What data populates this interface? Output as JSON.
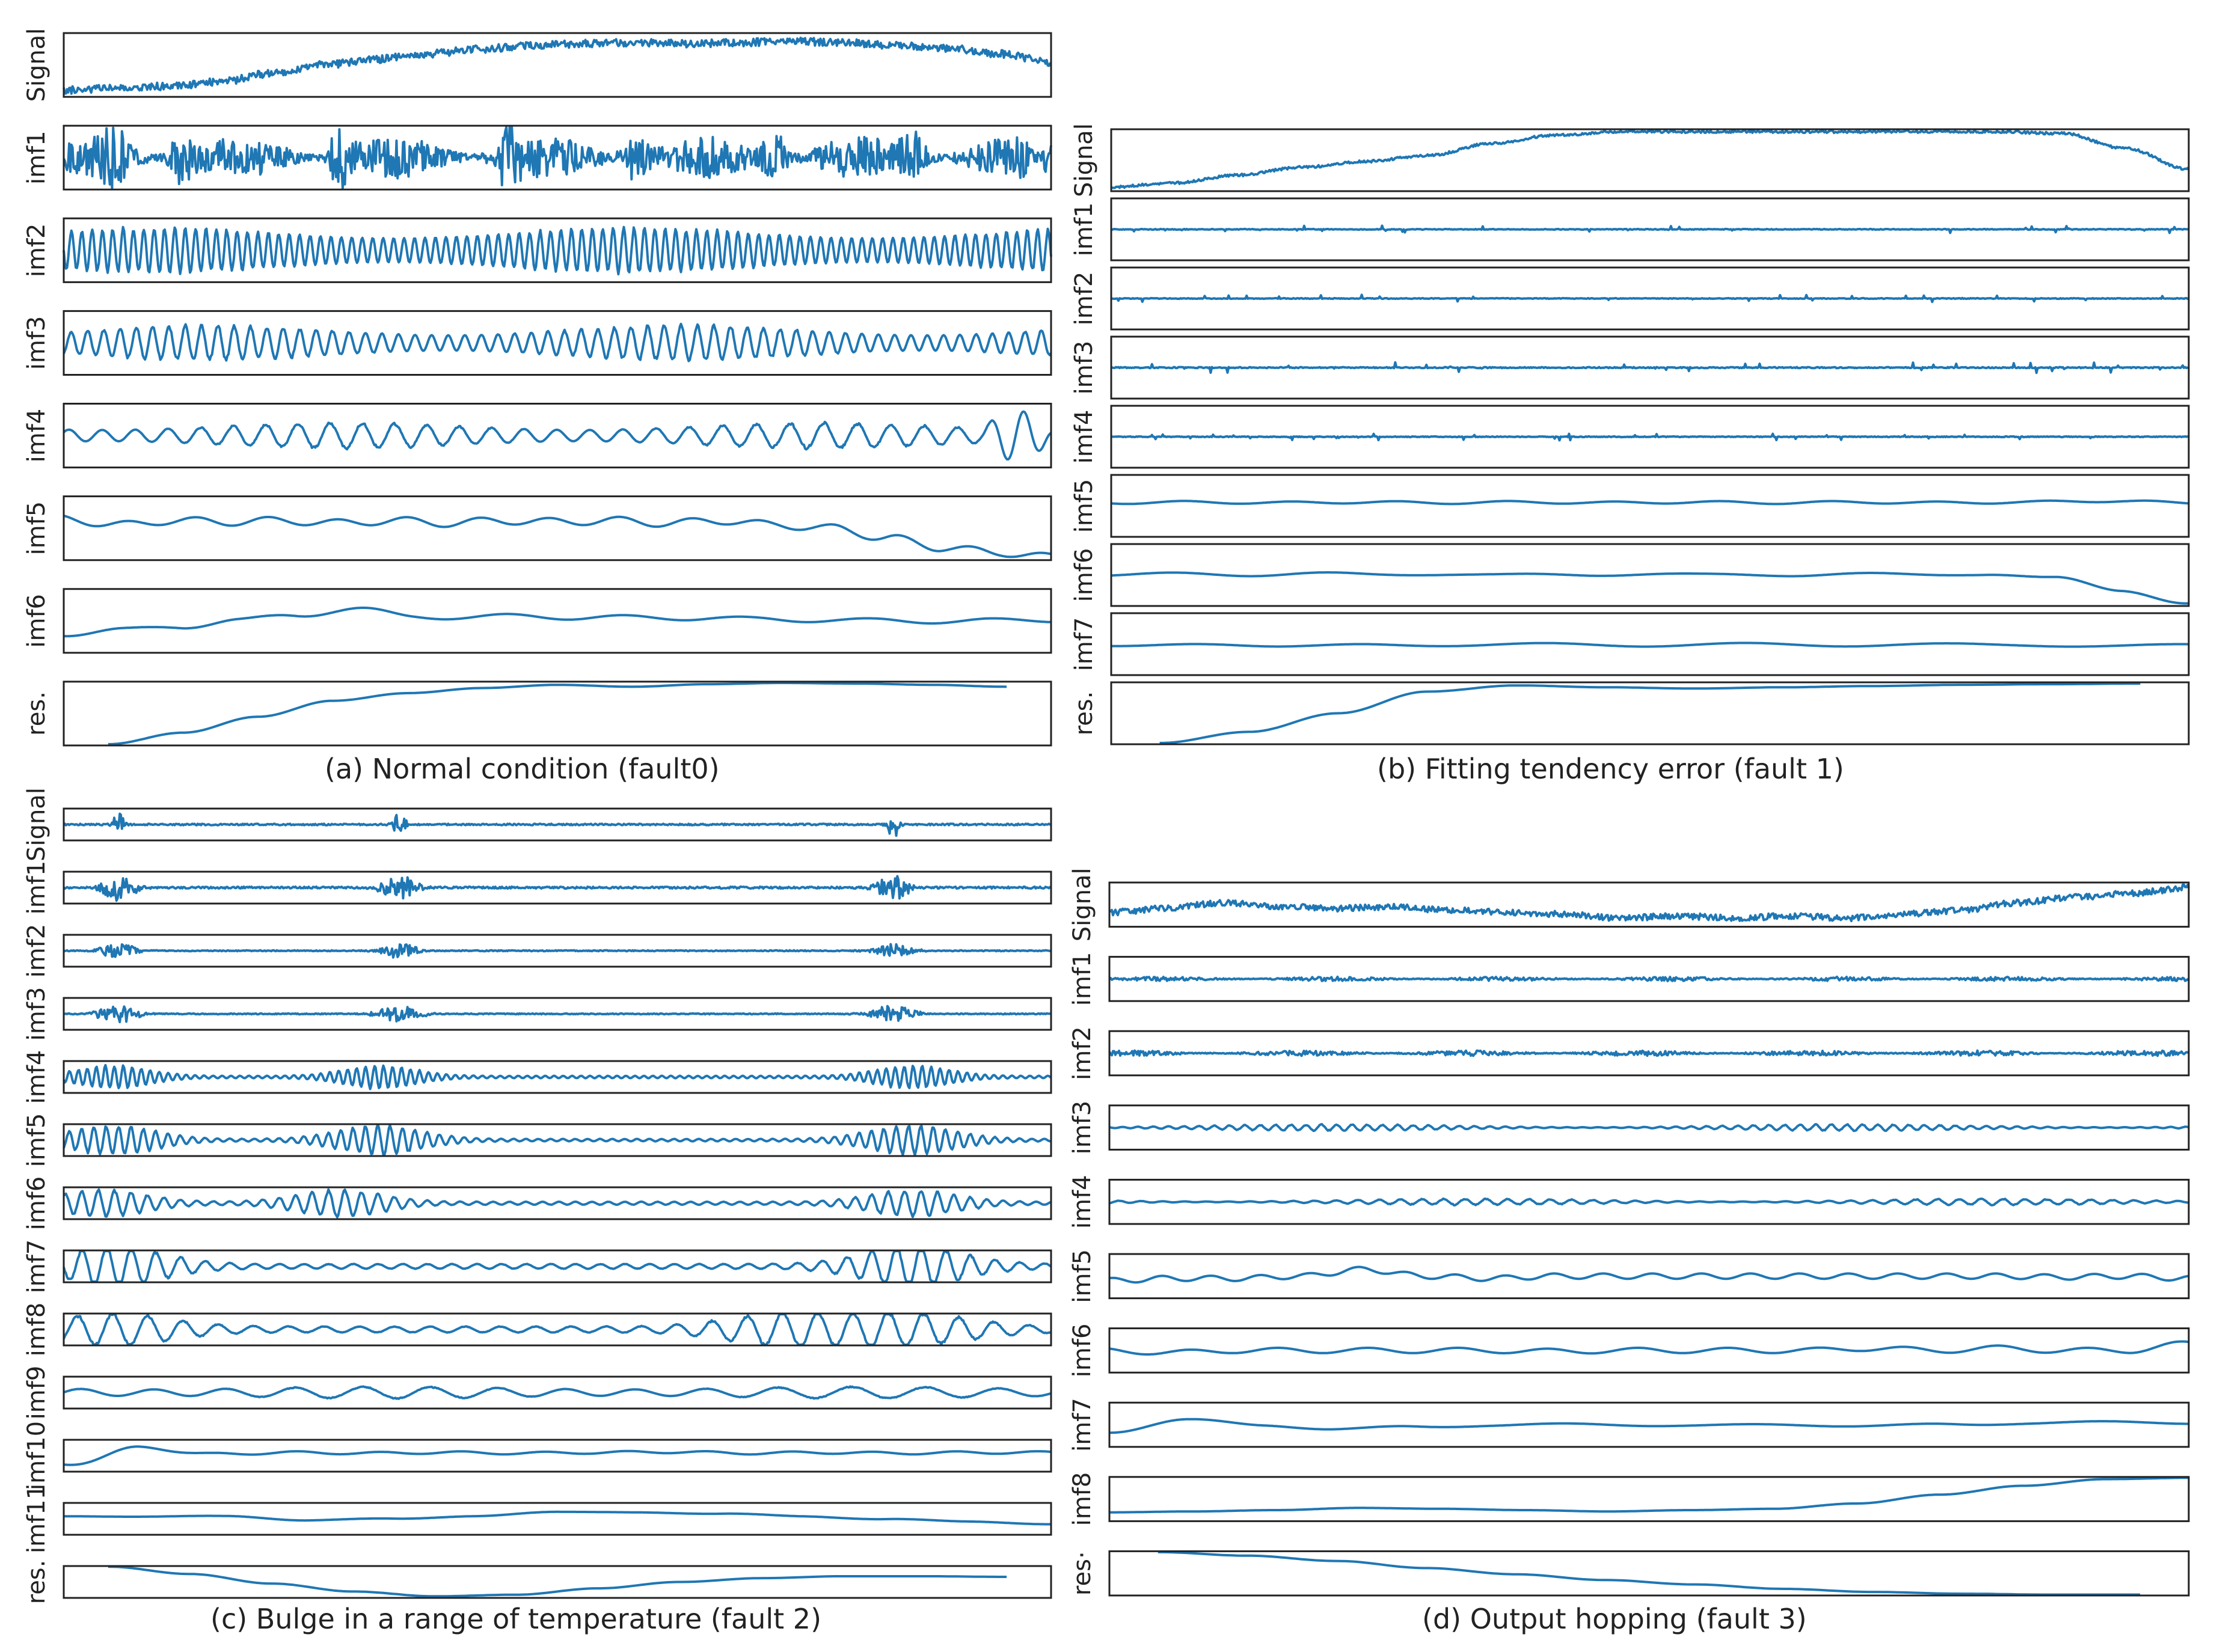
{
  "line_color": "#1f77b4",
  "chart_data": [
    {
      "type": "line",
      "panel": "a",
      "caption": "(a) Normal condition (fault0)",
      "grid": false,
      "subplots": [
        {
          "label": "Signal",
          "kind": "trend_noisy",
          "seed": 11,
          "trend": [
            0.05,
            0.08,
            0.12,
            0.2,
            0.35,
            0.5,
            0.6,
            0.7,
            0.78,
            0.85,
            0.88,
            0.9,
            0.88,
            0.9,
            0.92,
            0.9,
            0.85,
            0.8,
            0.7,
            0.55
          ],
          "noise": 0.06
        },
        {
          "label": "imf1",
          "kind": "noise",
          "seed": 21,
          "amp": 0.55,
          "bursts": [
            0.05,
            0.12,
            0.28,
            0.45,
            0.58,
            0.72,
            0.86
          ]
        },
        {
          "label": "imf2",
          "kind": "osc",
          "seed": 31,
          "amp": 0.38,
          "cycles": 95,
          "mod": 0.5
        },
        {
          "label": "imf3",
          "kind": "osc",
          "seed": 41,
          "amp": 0.3,
          "cycles": 60,
          "mod": 0.6
        },
        {
          "label": "imf4",
          "kind": "osc",
          "seed": 51,
          "amp": 0.22,
          "cycles": 30,
          "mod": 0.6,
          "endbump": 0.5
        },
        {
          "label": "imf5",
          "kind": "smooth",
          "seed": 61,
          "trend": [
            0.65,
            0.55,
            0.62,
            0.6,
            0.62,
            0.58,
            0.62,
            0.58,
            0.62,
            0.6,
            0.62,
            0.58,
            0.62,
            0.55,
            0.5,
            0.35,
            0.2,
            0.12,
            0.05
          ],
          "osc": 0.06,
          "cycles": 14
        },
        {
          "label": "imf6",
          "kind": "smooth",
          "seed": 71,
          "trend": [
            0.3,
            0.35,
            0.42,
            0.5,
            0.6,
            0.68,
            0.58,
            0.55,
            0.58,
            0.55,
            0.55,
            0.55,
            0.52,
            0.52,
            0.5,
            0.5,
            0.5,
            0.52
          ],
          "osc": 0.04,
          "cycles": 8
        },
        {
          "label": "res.",
          "kind": "curve",
          "trend": [
            0.02,
            0.2,
            0.45,
            0.7,
            0.82,
            0.9,
            0.95,
            0.92,
            0.96,
            0.98,
            0.97,
            0.95,
            0.92
          ],
          "start": 0.045,
          "end": 0.955
        }
      ]
    },
    {
      "type": "line",
      "panel": "b",
      "caption": "(b) Fitting tendency error (fault 1)",
      "grid": false,
      "subplots": [
        {
          "label": "Signal",
          "kind": "trend_noisy",
          "seed": 12,
          "trend": [
            0.05,
            0.12,
            0.25,
            0.38,
            0.48,
            0.58,
            0.78,
            0.92,
            0.98,
            0.98,
            0.98,
            0.98,
            0.98,
            0.98,
            0.98,
            0.95,
            0.7,
            0.35
          ],
          "noise": 0.02
        },
        {
          "label": "imf1",
          "kind": "flat",
          "seed": 22,
          "amp": 0.02
        },
        {
          "label": "imf2",
          "kind": "flat",
          "seed": 32,
          "amp": 0.02
        },
        {
          "label": "imf3",
          "kind": "flat",
          "seed": 42,
          "amp": 0.03
        },
        {
          "label": "imf4",
          "kind": "flat",
          "seed": 52,
          "amp": 0.02
        },
        {
          "label": "imf5",
          "kind": "smooth",
          "seed": 62,
          "trend": [
            0.55,
            0.56,
            0.55,
            0.56,
            0.55,
            0.56,
            0.55,
            0.56,
            0.55,
            0.56,
            0.55,
            0.56,
            0.58,
            0.55
          ],
          "osc": 0.02,
          "cycles": 10
        },
        {
          "label": "imf6",
          "kind": "smooth",
          "seed": 72,
          "trend": [
            0.5,
            0.52,
            0.5,
            0.53,
            0.5,
            0.52,
            0.5,
            0.5,
            0.52,
            0.5,
            0.5,
            0.52,
            0.5,
            0.52,
            0.45,
            0.25,
            0.05
          ],
          "osc": 0.02,
          "cycles": 6
        },
        {
          "label": "imf7",
          "kind": "smooth",
          "seed": 82,
          "trend": [
            0.45,
            0.52,
            0.45,
            0.5,
            0.48,
            0.5,
            0.48,
            0.5,
            0.48,
            0.5,
            0.48,
            0.48,
            0.48
          ],
          "osc": 0.02,
          "cycles": 5
        },
        {
          "label": "res.",
          "kind": "curve",
          "trend": [
            0.02,
            0.2,
            0.5,
            0.85,
            0.95,
            0.92,
            0.9,
            0.92,
            0.94,
            0.96,
            0.97,
            0.98
          ],
          "start": 0.045,
          "end": 0.955
        }
      ]
    },
    {
      "type": "line",
      "panel": "c",
      "caption": "(c) Bulge in a range of temperature (fault 2)",
      "grid": false,
      "subplots": [
        {
          "label": "Signal",
          "kind": "spikes",
          "seed": 13,
          "amp": 0.08,
          "spike": 0.9,
          "width": 0.006,
          "at": [
            0.055,
            0.34,
            0.84
          ]
        },
        {
          "label": "imf1",
          "kind": "spikes",
          "seed": 23,
          "amp": 0.1,
          "spike": 0.8,
          "width": 0.018,
          "at": [
            0.055,
            0.34,
            0.84
          ]
        },
        {
          "label": "imf2",
          "kind": "spikes",
          "seed": 33,
          "amp": 0.05,
          "spike": 0.45,
          "width": 0.02,
          "at": [
            0.055,
            0.34,
            0.84
          ]
        },
        {
          "label": "imf3",
          "kind": "spikes",
          "seed": 43,
          "amp": 0.05,
          "spike": 0.55,
          "width": 0.022,
          "at": [
            0.055,
            0.34,
            0.84
          ]
        },
        {
          "label": "imf4",
          "kind": "packets",
          "seed": 53,
          "amp": 0.04,
          "peak": 0.35,
          "cycles": 110,
          "at": [
            0.05,
            0.32,
            0.86
          ],
          "width": 0.05
        },
        {
          "label": "imf5",
          "kind": "packets",
          "seed": 63,
          "amp": 0.04,
          "peak": 0.45,
          "cycles": 80,
          "at": [
            0.05,
            0.32,
            0.86
          ],
          "width": 0.06
        },
        {
          "label": "imf6",
          "kind": "packets",
          "seed": 73,
          "amp": 0.05,
          "peak": 0.4,
          "cycles": 60,
          "at": [
            0.04,
            0.28,
            0.86
          ],
          "width": 0.06
        },
        {
          "label": "imf7",
          "kind": "packets",
          "seed": 83,
          "amp": 0.08,
          "peak": 0.6,
          "cycles": 40,
          "at": [
            0.05,
            0.86
          ],
          "width": 0.07
        },
        {
          "label": "imf8",
          "kind": "packets",
          "seed": 93,
          "amp": 0.1,
          "peak": 0.45,
          "cycles": 28,
          "at": [
            0.05,
            0.73,
            0.86
          ],
          "width": 0.08
        },
        {
          "label": "imf9",
          "kind": "osc",
          "seed": 103,
          "amp": 0.2,
          "cycles": 14,
          "mod": 0.5
        },
        {
          "label": "imf10",
          "kind": "smooth",
          "seed": 113,
          "trend": [
            0.2,
            0.75,
            0.55,
            0.6,
            0.58,
            0.6,
            0.58,
            0.6,
            0.62,
            0.58,
            0.6,
            0.58,
            0.6,
            0.6
          ],
          "osc": 0.04,
          "cycles": 12
        },
        {
          "label": "imf11",
          "kind": "smooth",
          "seed": 123,
          "trend": [
            0.6,
            0.55,
            0.6,
            0.45,
            0.5,
            0.6,
            0.7,
            0.72,
            0.65,
            0.58,
            0.5,
            0.4,
            0.35
          ],
          "osc": 0.02,
          "cycles": 5
        },
        {
          "label": "res.",
          "kind": "curve",
          "trend": [
            0.98,
            0.75,
            0.45,
            0.2,
            0.05,
            0.1,
            0.3,
            0.5,
            0.62,
            0.68,
            0.68,
            0.66
          ],
          "start": 0.045,
          "end": 0.955
        }
      ]
    },
    {
      "type": "line",
      "panel": "d",
      "caption": "(d) Output hopping (fault 3)",
      "grid": false,
      "subplots": [
        {
          "label": "Signal",
          "kind": "trend_noisy",
          "seed": 14,
          "trend": [
            0.3,
            0.4,
            0.55,
            0.45,
            0.4,
            0.45,
            0.35,
            0.3,
            0.25,
            0.15,
            0.2,
            0.15,
            0.2,
            0.15,
            0.25,
            0.35,
            0.55,
            0.7,
            0.8,
            0.95
          ],
          "noise": 0.07
        },
        {
          "label": "imf1",
          "kind": "noise",
          "seed": 24,
          "amp": 0.08,
          "bursts": []
        },
        {
          "label": "imf2",
          "kind": "noise",
          "seed": 34,
          "amp": 0.1,
          "bursts": []
        },
        {
          "label": "imf3",
          "kind": "osc",
          "seed": 44,
          "amp": 0.08,
          "cycles": 70,
          "mod": 0.9
        },
        {
          "label": "imf4",
          "kind": "osc",
          "seed": 54,
          "amp": 0.08,
          "cycles": 50,
          "mod": 0.9
        },
        {
          "label": "imf5",
          "kind": "smooth",
          "seed": 64,
          "trend": [
            0.4,
            0.45,
            0.45,
            0.5,
            0.65,
            0.5,
            0.45,
            0.5,
            0.5,
            0.5,
            0.5,
            0.5,
            0.5,
            0.5,
            0.5,
            0.48,
            0.5,
            0.45
          ],
          "osc": 0.06,
          "cycles": 22
        },
        {
          "label": "imf6",
          "kind": "smooth",
          "seed": 74,
          "trend": [
            0.5,
            0.45,
            0.5,
            0.5,
            0.5,
            0.5,
            0.5,
            0.48,
            0.5,
            0.5,
            0.5,
            0.5,
            0.55,
            0.5,
            0.55,
            0.5,
            0.5,
            0.65
          ],
          "osc": 0.06,
          "cycles": 12
        },
        {
          "label": "imf7",
          "kind": "smooth",
          "seed": 84,
          "trend": [
            0.35,
            0.6,
            0.5,
            0.4,
            0.45,
            0.5,
            0.5,
            0.5,
            0.48,
            0.5,
            0.48,
            0.5,
            0.55,
            0.55,
            0.55
          ],
          "osc": 0.03,
          "cycles": 6
        },
        {
          "label": "imf8",
          "kind": "smooth",
          "seed": 94,
          "trend": [
            0.2,
            0.22,
            0.25,
            0.3,
            0.28,
            0.25,
            0.22,
            0.25,
            0.28,
            0.4,
            0.6,
            0.8,
            0.95,
            0.98
          ],
          "osc": 0.0,
          "cycles": 1
        },
        {
          "label": "res·",
          "kind": "curve",
          "trend": [
            0.98,
            0.9,
            0.78,
            0.62,
            0.48,
            0.35,
            0.25,
            0.15,
            0.08,
            0.04,
            0.02,
            0.02
          ],
          "start": 0.045,
          "end": 0.955
        }
      ]
    }
  ]
}
